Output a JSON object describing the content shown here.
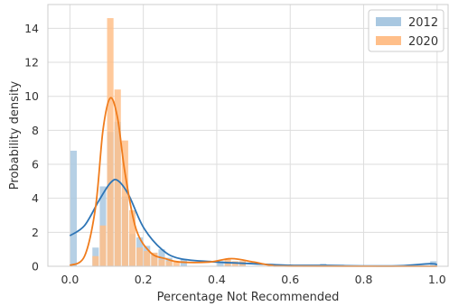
{
  "chart_data": {
    "type": "histogram",
    "title": "",
    "xlabel": "Percentage Not Recommended",
    "ylabel": "Probability density",
    "xlim": [
      -0.06,
      1.03
    ],
    "ylim": [
      0,
      15.4
    ],
    "xticks": [
      0.0,
      0.2,
      0.4,
      0.6,
      0.8,
      1.0
    ],
    "xtick_labels": [
      "0.0",
      "0.2",
      "0.4",
      "0.6",
      "0.8",
      "1.0"
    ],
    "yticks": [
      0,
      2,
      4,
      6,
      8,
      10,
      12,
      14
    ],
    "ytick_labels": [
      "0",
      "2",
      "4",
      "6",
      "8",
      "10",
      "12",
      "14"
    ],
    "grid": true,
    "legend_position": "top-right",
    "bin_width": 0.02,
    "series": [
      {
        "name": "2012",
        "bar_color": "#a9c8e1",
        "line_color": "#2e75b6",
        "bins": [
          {
            "x": 0.0,
            "density": 6.8
          },
          {
            "x": 0.06,
            "density": 1.1
          },
          {
            "x": 0.08,
            "density": 4.7
          },
          {
            "x": 0.1,
            "density": 7.9
          },
          {
            "x": 0.12,
            "density": 8.5
          },
          {
            "x": 0.14,
            "density": 4.1
          },
          {
            "x": 0.16,
            "density": 1.9
          },
          {
            "x": 0.18,
            "density": 1.7
          },
          {
            "x": 0.2,
            "density": 1.2
          },
          {
            "x": 0.22,
            "density": 0.8
          },
          {
            "x": 0.24,
            "density": 1.0
          },
          {
            "x": 0.26,
            "density": 0.5
          },
          {
            "x": 0.3,
            "density": 0.4
          },
          {
            "x": 0.4,
            "density": 0.3
          },
          {
            "x": 0.42,
            "density": 0.3
          },
          {
            "x": 0.46,
            "density": 0.3
          },
          {
            "x": 0.68,
            "density": 0.15
          },
          {
            "x": 0.98,
            "density": 0.3
          }
        ],
        "kde": [
          {
            "x": 0.0,
            "y": 1.8
          },
          {
            "x": 0.04,
            "y": 2.4
          },
          {
            "x": 0.08,
            "y": 3.9
          },
          {
            "x": 0.11,
            "y": 4.9
          },
          {
            "x": 0.13,
            "y": 5.05
          },
          {
            "x": 0.16,
            "y": 4.2
          },
          {
            "x": 0.2,
            "y": 2.3
          },
          {
            "x": 0.25,
            "y": 1.0
          },
          {
            "x": 0.3,
            "y": 0.45
          },
          {
            "x": 0.4,
            "y": 0.25
          },
          {
            "x": 0.5,
            "y": 0.15
          },
          {
            "x": 0.6,
            "y": 0.06
          },
          {
            "x": 0.7,
            "y": 0.05
          },
          {
            "x": 0.8,
            "y": 0.02
          },
          {
            "x": 0.9,
            "y": 0.03
          },
          {
            "x": 0.98,
            "y": 0.15
          },
          {
            "x": 1.0,
            "y": 0.1
          }
        ]
      },
      {
        "name": "2020",
        "bar_color": "#ffbf8a",
        "line_color": "#f07c1c",
        "bins": [
          {
            "x": 0.06,
            "density": 0.6
          },
          {
            "x": 0.08,
            "density": 2.4
          },
          {
            "x": 0.1,
            "density": 14.6
          },
          {
            "x": 0.12,
            "density": 10.4
          },
          {
            "x": 0.14,
            "density": 7.4
          },
          {
            "x": 0.16,
            "density": 3.3
          },
          {
            "x": 0.18,
            "density": 1.1
          },
          {
            "x": 0.2,
            "density": 0.9
          },
          {
            "x": 0.22,
            "density": 0.8
          },
          {
            "x": 0.24,
            "density": 0.4
          },
          {
            "x": 0.26,
            "density": 0.3
          },
          {
            "x": 0.28,
            "density": 0.3
          },
          {
            "x": 0.42,
            "density": 0.4
          },
          {
            "x": 0.44,
            "density": 0.3
          },
          {
            "x": 0.46,
            "density": 0.3
          }
        ],
        "kde": [
          {
            "x": 0.0,
            "y": 0.05
          },
          {
            "x": 0.04,
            "y": 0.6
          },
          {
            "x": 0.07,
            "y": 3.5
          },
          {
            "x": 0.09,
            "y": 8.0
          },
          {
            "x": 0.11,
            "y": 9.9
          },
          {
            "x": 0.13,
            "y": 8.7
          },
          {
            "x": 0.15,
            "y": 5.5
          },
          {
            "x": 0.18,
            "y": 2.2
          },
          {
            "x": 0.22,
            "y": 0.8
          },
          {
            "x": 0.26,
            "y": 0.45
          },
          {
            "x": 0.3,
            "y": 0.25
          },
          {
            "x": 0.38,
            "y": 0.25
          },
          {
            "x": 0.44,
            "y": 0.45
          },
          {
            "x": 0.5,
            "y": 0.25
          },
          {
            "x": 0.55,
            "y": 0.05
          },
          {
            "x": 0.6,
            "y": 0.01
          },
          {
            "x": 1.0,
            "y": 0.0
          }
        ]
      }
    ]
  }
}
